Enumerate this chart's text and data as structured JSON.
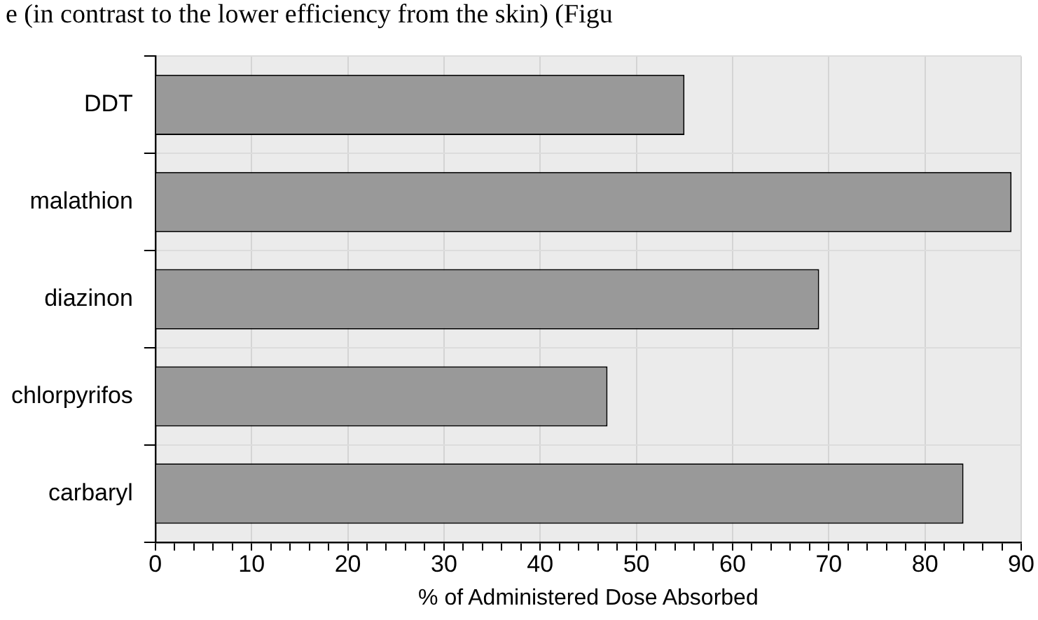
{
  "chart_data": {
    "type": "bar",
    "orientation": "horizontal",
    "categories": [
      "DDT",
      "malathion",
      "diazinon",
      "chlorpyrifos",
      "carbaryl"
    ],
    "values": [
      55,
      89,
      69,
      47,
      84
    ],
    "color": "#999999",
    "xlabel": "% of Administered Dose Absorbed",
    "xlim": [
      0,
      90
    ],
    "xticks": [
      0,
      {
        "value": 2,
        "label": null
      },
      {
        "value": 4,
        "label": null
      },
      {
        "value": 6,
        "label": null
      },
      {
        "value": 8,
        "label": null
      },
      10,
      {
        "value": 12,
        "label": null
      },
      {
        "value": 14,
        "label": null
      },
      {
        "value": 16,
        "label": null
      },
      {
        "value": 18,
        "label": null
      },
      20,
      {
        "value": 22,
        "label": null
      },
      {
        "value": 24,
        "label": null
      },
      {
        "value": 26,
        "label": null
      },
      {
        "value": 28,
        "label": null
      },
      30,
      {
        "value": 32,
        "label": null
      },
      {
        "value": 34,
        "label": null
      },
      {
        "value": 36,
        "label": null
      },
      {
        "value": 38,
        "label": null
      },
      40,
      {
        "value": 42,
        "label": null
      },
      {
        "value": 44,
        "label": null
      },
      {
        "value": 46,
        "label": null
      },
      {
        "value": 48,
        "label": null
      },
      50,
      {
        "value": 52,
        "label": null
      },
      {
        "value": 54,
        "label": null
      },
      {
        "value": 56,
        "label": null
      },
      {
        "value": 58,
        "label": null
      },
      60,
      {
        "value": 62,
        "label": null
      },
      {
        "value": 64,
        "label": null
      },
      {
        "value": 66,
        "label": null
      },
      {
        "value": 68,
        "label": null
      },
      70,
      {
        "value": 72,
        "label": null
      },
      {
        "value": 74,
        "label": null
      },
      {
        "value": 76,
        "label": null
      },
      {
        "value": 78,
        "label": null
      },
      80,
      {
        "value": 82,
        "label": null
      },
      {
        "value": 84,
        "label": null
      },
      {
        "value": 86,
        "label": null
      },
      {
        "value": 88,
        "label": null
      },
      90
    ],
    "grid": true,
    "legend": false,
    "annotations": [
      "e (in contrast to the lower efficiency from the skin) (Figu"
    ]
  }
}
